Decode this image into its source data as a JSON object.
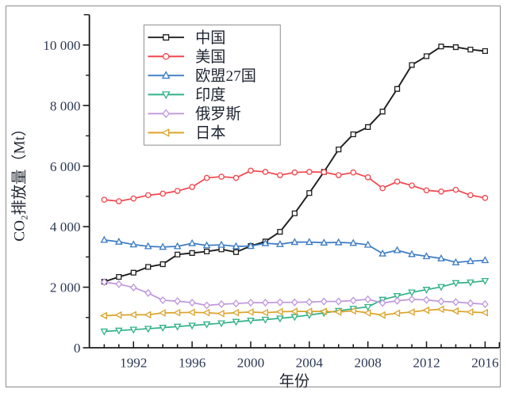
{
  "figure": {
    "background": "#ffffff",
    "border_color": "#8b8b8b",
    "axis_color": "#1a1a1a",
    "tick_label_color": "#2d3a56",
    "text_color": "#1e2531"
  },
  "chart_data": {
    "type": "line",
    "title": "",
    "xlabel": "年份",
    "ylabel": "CO₂排放量（Mt）",
    "x": [
      1990,
      1991,
      1992,
      1993,
      1994,
      1995,
      1996,
      1997,
      1998,
      1999,
      2000,
      2001,
      2002,
      2003,
      2004,
      2005,
      2006,
      2007,
      2008,
      2009,
      2010,
      2011,
      2012,
      2013,
      2014,
      2015,
      2016
    ],
    "xlim": [
      1988.9,
      2017.0
    ],
    "ylim": [
      0,
      11000
    ],
    "x_tick_major_years": [
      1992,
      1996,
      2000,
      2004,
      2008,
      2012,
      2016
    ],
    "x_tick_labels": [
      "1992",
      "1996",
      "2000",
      "2004",
      "2008",
      "2012",
      "2016"
    ],
    "y_tick_values": [
      0,
      2000,
      4000,
      6000,
      8000,
      10000
    ],
    "y_tick_labels": [
      "0",
      "2 000",
      "4 000",
      "6 000",
      "8 000",
      "10 000"
    ],
    "y_minor_values": [
      1000,
      3000,
      5000,
      7000,
      9000,
      11000
    ],
    "grid": false,
    "legend_position": "top-left-inside",
    "series": [
      {
        "id": "china",
        "name": "中国",
        "color": "#1f1f1f",
        "marker": "square",
        "values": [
          2180,
          2340,
          2480,
          2670,
          2760,
          3080,
          3130,
          3180,
          3250,
          3160,
          3360,
          3510,
          3830,
          4440,
          5110,
          5810,
          6550,
          7050,
          7290,
          7800,
          8550,
          9340,
          9630,
          9950,
          9930,
          9850,
          9800
        ]
      },
      {
        "id": "usa",
        "name": "美国",
        "color": "#f2464d",
        "marker": "circle",
        "values": [
          4890,
          4840,
          4930,
          5040,
          5090,
          5180,
          5310,
          5610,
          5650,
          5610,
          5850,
          5810,
          5700,
          5790,
          5810,
          5800,
          5700,
          5790,
          5630,
          5270,
          5490,
          5360,
          5200,
          5160,
          5220,
          5040,
          4950
        ]
      },
      {
        "id": "eu27",
        "name": "欧盟27国",
        "color": "#3c7bc4",
        "marker": "triangle-up",
        "values": [
          3560,
          3500,
          3410,
          3350,
          3330,
          3350,
          3450,
          3380,
          3400,
          3350,
          3360,
          3450,
          3420,
          3490,
          3490,
          3470,
          3480,
          3460,
          3400,
          3110,
          3220,
          3090,
          3020,
          2950,
          2820,
          2860,
          2890
        ]
      },
      {
        "id": "india",
        "name": "印度",
        "color": "#32b286",
        "marker": "triangle-down",
        "values": [
          540,
          570,
          600,
          630,
          665,
          700,
          735,
          775,
          810,
          860,
          900,
          930,
          970,
          1020,
          1080,
          1150,
          1220,
          1290,
          1350,
          1590,
          1710,
          1830,
          1920,
          2010,
          2140,
          2160,
          2210
        ]
      },
      {
        "id": "russia",
        "name": "俄罗斯",
        "color": "#bf97dd",
        "marker": "diamond",
        "values": [
          2170,
          2100,
          1990,
          1810,
          1570,
          1540,
          1490,
          1400,
          1440,
          1460,
          1490,
          1490,
          1500,
          1500,
          1510,
          1530,
          1530,
          1560,
          1600,
          1480,
          1550,
          1600,
          1580,
          1530,
          1510,
          1470,
          1440
        ]
      },
      {
        "id": "japan",
        "name": "日本",
        "color": "#dca32b",
        "marker": "triangle-left",
        "values": [
          1060,
          1080,
          1090,
          1090,
          1150,
          1160,
          1170,
          1160,
          1130,
          1160,
          1180,
          1160,
          1190,
          1200,
          1200,
          1200,
          1180,
          1220,
          1150,
          1080,
          1140,
          1180,
          1240,
          1270,
          1210,
          1180,
          1160
        ]
      }
    ]
  }
}
